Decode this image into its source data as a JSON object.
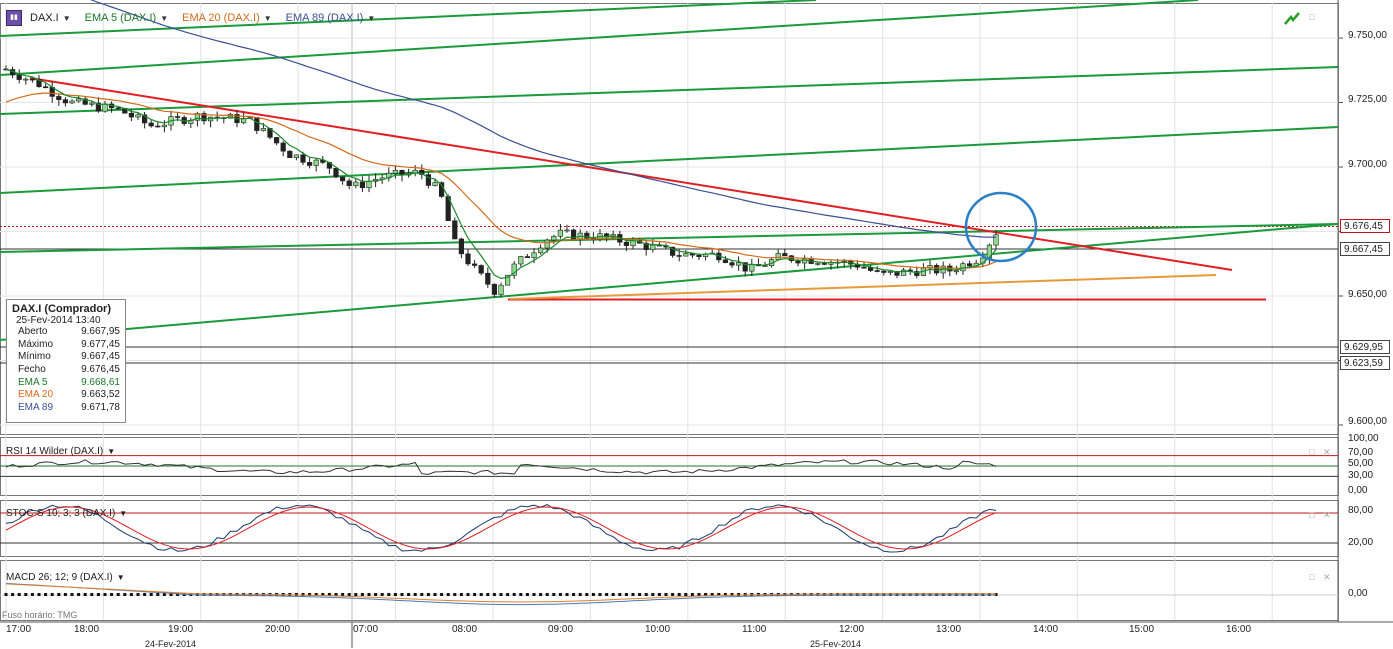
{
  "legend": {
    "symbol": "DAX.I",
    "symbol_icon": "chart-bars-icon",
    "ema5": "EMA 5 (DAX.I)",
    "ema20": "EMA 20 (DAX.I)",
    "ema89": "EMA 89 (DAX.I)"
  },
  "colors": {
    "ema5": "#1a8a2a",
    "ema20": "#d46a1a",
    "ema89": "#3a4f95",
    "trend_green": "#1a9a3a",
    "trend_red": "#e01f24",
    "highlight_circle": "#2a7fc9",
    "candle_up": "#8fd98f",
    "candle_down": "#222222"
  },
  "infobox": {
    "title": "DAX.I (Comprador)",
    "datetime": "25-Fev-2014 13:40",
    "rows": [
      {
        "k": "Aberto",
        "v": "9.667,95"
      },
      {
        "k": "Máximo",
        "v": "9.677,45"
      },
      {
        "k": "Mínimo",
        "v": "9.667,45"
      },
      {
        "k": "Fecho",
        "v": "9.676,45"
      },
      {
        "k": "EMA 5",
        "v": "9.668,61"
      },
      {
        "k": "EMA 20",
        "v": "9.663,52"
      },
      {
        "k": "EMA 89",
        "v": "9.671,78"
      }
    ]
  },
  "price_axis": {
    "ticks": [
      "9.750,00",
      "9.725,00",
      "9.700,00",
      "9.650,00",
      "9.600,00"
    ],
    "current_price": "9.676,45",
    "level_1": "9.667,45",
    "level_2": "9.629,95",
    "level_3": "9.623,59"
  },
  "rsi": {
    "label": "RSI 14 Wilder (DAX.I)",
    "ticks": [
      "100,00",
      "70,00",
      "50,00",
      "30,00",
      "0,00"
    ]
  },
  "stoch": {
    "label": "STOC-S 10; 3; 3 (DAX.I)",
    "ticks": [
      "80,00",
      "20,00"
    ]
  },
  "macd": {
    "label": "MACD 26; 12; 9 (DAX.I)",
    "ticks": [
      "0,00"
    ]
  },
  "timezone": "Fuso horário: TMG",
  "time_axis": {
    "labels": [
      "17:00",
      "18:00",
      "19:00",
      "20:00",
      "07:00",
      "08:00",
      "09:00",
      "10:00",
      "11:00",
      "12:00",
      "13:00",
      "14:00",
      "15:00",
      "16:00"
    ],
    "dates": [
      "24-Fev-2014",
      "25-Fev-2014"
    ]
  },
  "window_buttons": {
    "maximize": "□",
    "close": "✕"
  }
}
